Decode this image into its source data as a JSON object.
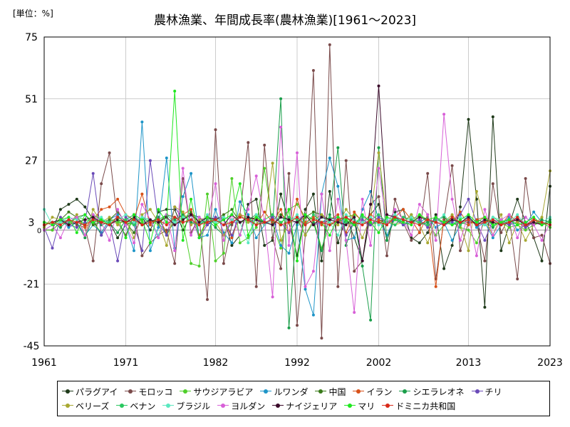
{
  "unit_label": "[単位：%]",
  "chart_data": {
    "type": "line",
    "title": "農林漁業、年間成長率(農林漁業)[1961～2023]",
    "xlabel": "",
    "ylabel": "",
    "xlim": [
      1961,
      2023
    ],
    "ylim": [
      -45,
      75
    ],
    "yticks": [
      75,
      51,
      27,
      3,
      -21,
      -45
    ],
    "xticks": [
      1961,
      1971,
      1982,
      1992,
      2002,
      2013,
      2023
    ],
    "zero_label": "0",
    "grid": true,
    "legend_position": "bottom",
    "series": [
      {
        "name": "パラグアイ",
        "color": "#1f3a1a",
        "values": [
          0,
          0,
          8,
          10,
          12,
          9,
          4,
          -2,
          3,
          -3,
          2,
          3,
          5,
          0,
          7,
          8,
          8,
          0,
          6,
          5,
          2,
          4,
          5,
          -6,
          -2,
          10,
          12,
          -6,
          -4,
          14,
          3,
          -10,
          8,
          14,
          -12,
          15,
          -5,
          5,
          -3,
          -12,
          6,
          10,
          -4,
          7,
          8,
          -3,
          -5,
          -1,
          6,
          -15,
          -6,
          9,
          43,
          12,
          -30,
          44,
          -8,
          2,
          12,
          3,
          -3,
          -12,
          17
        ]
      },
      {
        "name": "モロッコ",
        "color": "#7a4a4a",
        "values": [
          0,
          0,
          3,
          4,
          2,
          1,
          -12,
          18,
          30,
          3,
          -2,
          6,
          -10,
          -5,
          -2,
          0,
          -13,
          20,
          -1,
          5,
          -27,
          39,
          -13,
          2,
          6,
          34,
          -22,
          33,
          -3,
          -15,
          22,
          -37,
          -2,
          62,
          -42,
          72,
          -22,
          27,
          -16,
          -12,
          10,
          13,
          -10,
          12,
          3,
          -4,
          -1,
          22,
          -19,
          4,
          25,
          -8,
          3,
          3,
          -12,
          18,
          -1,
          5,
          -19,
          20,
          -3,
          -2,
          -13
        ]
      },
      {
        "name": "サウジアラビア",
        "color": "#4fcf2a",
        "values": [
          0,
          0,
          3,
          2,
          5,
          4,
          3,
          -1,
          4,
          3,
          3,
          2,
          3,
          4,
          2,
          6,
          3,
          3,
          -13,
          -14,
          14,
          -12,
          -9,
          20,
          -5,
          -3,
          1,
          24,
          2,
          -7,
          8,
          10,
          5,
          4,
          -7,
          2,
          3,
          5,
          6,
          4,
          2,
          3,
          3,
          5,
          2,
          4,
          6,
          3,
          -2,
          2,
          3,
          1,
          0,
          -5,
          4,
          2,
          3,
          1,
          2,
          0,
          2,
          3,
          1
        ]
      },
      {
        "name": "ルワンダ",
        "color": "#1e95c8",
        "values": [
          0,
          2,
          4,
          1,
          3,
          -2,
          2,
          -1,
          4,
          6,
          2,
          -8,
          42,
          -8,
          1,
          28,
          -7,
          13,
          22,
          -3,
          -2,
          8,
          -1,
          -5,
          11,
          6,
          -3,
          2,
          5,
          -6,
          -9,
          2,
          -23,
          -33,
          14,
          28,
          17,
          -4,
          -3,
          8,
          15,
          4,
          -2,
          5,
          2,
          4,
          3,
          5,
          1,
          3,
          -4,
          2,
          6,
          1,
          3,
          -3,
          2,
          5,
          0,
          2,
          7,
          3,
          2
        ]
      },
      {
        "name": "中国",
        "color": "#3a7a1a",
        "values": [
          3,
          2,
          4,
          7,
          5,
          6,
          2,
          3,
          4,
          7,
          3,
          -1,
          5,
          4,
          3,
          6,
          5,
          4,
          7,
          3,
          5,
          4,
          6,
          8,
          3,
          4,
          5,
          3,
          2,
          6,
          4,
          3,
          5,
          7,
          6,
          4,
          3,
          5,
          2,
          3,
          2,
          4,
          3,
          2,
          5,
          4,
          3,
          2,
          4,
          3,
          4,
          3,
          2,
          4,
          3,
          3,
          2,
          3,
          4,
          2,
          3,
          2,
          3
        ]
      },
      {
        "name": "イラン",
        "color": "#d8521a",
        "values": [
          3,
          2,
          4,
          3,
          5,
          1,
          4,
          8,
          9,
          12,
          6,
          4,
          14,
          2,
          5,
          -1,
          3,
          6,
          8,
          -2,
          3,
          5,
          4,
          -3,
          6,
          5,
          2,
          7,
          3,
          8,
          -1,
          12,
          3,
          5,
          2,
          4,
          6,
          -1,
          7,
          3,
          6,
          4,
          2,
          5,
          8,
          4,
          -1,
          6,
          -22,
          5,
          3,
          7,
          2,
          4,
          5,
          3,
          2,
          6,
          3,
          1,
          4,
          2,
          3
        ]
      },
      {
        "name": "シエラレオネ",
        "color": "#1a9e4a",
        "values": [
          2,
          3,
          1,
          4,
          3,
          -3,
          5,
          2,
          3,
          -1,
          4,
          6,
          2,
          3,
          5,
          -2,
          4,
          6,
          3,
          2,
          4,
          1,
          -2,
          3,
          5,
          4,
          6,
          3,
          2,
          51,
          -38,
          4,
          -2,
          3,
          -8,
          6,
          32,
          -6,
          4,
          -14,
          -35,
          32,
          -4,
          5,
          3,
          6,
          2,
          3,
          4,
          5,
          2,
          3,
          4,
          2,
          3,
          1,
          4,
          2,
          3,
          5,
          2,
          4,
          3
        ]
      },
      {
        "name": "チリ",
        "color": "#6a4ab8",
        "values": [
          1,
          -7,
          5,
          2,
          1,
          3,
          22,
          -2,
          3,
          -12,
          5,
          2,
          -8,
          27,
          3,
          -2,
          9,
          4,
          6,
          -3,
          2,
          5,
          4,
          -2,
          6,
          3,
          4,
          2,
          5,
          3,
          -1,
          4,
          6,
          2,
          3,
          4,
          5,
          -2,
          3,
          4,
          2,
          5,
          3,
          4,
          2,
          3,
          4,
          1,
          5,
          2,
          3,
          6,
          12,
          3,
          -4,
          4,
          3,
          2,
          5,
          1,
          3,
          2,
          4
        ]
      },
      {
        "name": "ベリーズ",
        "color": "#a8a832",
        "values": [
          1,
          5,
          4,
          2,
          6,
          -2,
          8,
          3,
          5,
          2,
          4,
          -3,
          6,
          8,
          3,
          -6,
          9,
          7,
          2,
          4,
          5,
          3,
          -2,
          4,
          6,
          3,
          5,
          2,
          26,
          -4,
          3,
          5,
          -2,
          4,
          6,
          3,
          2,
          8,
          4,
          -3,
          5,
          30,
          4,
          2,
          3,
          6,
          2,
          -5,
          4,
          3,
          6,
          2,
          -8,
          15,
          4,
          -2,
          6,
          -5,
          3,
          -4,
          2,
          5,
          23
        ]
      },
      {
        "name": "ベナン",
        "color": "#2ac860",
        "values": [
          2,
          3,
          4,
          3,
          5,
          2,
          6,
          4,
          3,
          5,
          4,
          2,
          5,
          3,
          4,
          6,
          3,
          5,
          4,
          2,
          5,
          3,
          4,
          6,
          3,
          5,
          2,
          4,
          6,
          3,
          5,
          4,
          2,
          6,
          3,
          5,
          4,
          3,
          2,
          5,
          4,
          6,
          3,
          2,
          5,
          4,
          3,
          2,
          4,
          3,
          5,
          2,
          4,
          3,
          2,
          5,
          3,
          4,
          2,
          3,
          5,
          2,
          4
        ]
      },
      {
        "name": "ブラジル",
        "color": "#5ae8c0",
        "values": [
          8,
          2,
          3,
          5,
          4,
          6,
          3,
          5,
          2,
          4,
          6,
          3,
          5,
          4,
          -2,
          6,
          3,
          5,
          4,
          2,
          6,
          3,
          5,
          4,
          3,
          -5,
          6,
          2,
          4,
          5,
          3,
          6,
          2,
          4,
          5,
          3,
          -2,
          6,
          4,
          3,
          5,
          2,
          4,
          6,
          3,
          5,
          2,
          4,
          3,
          6,
          2,
          5,
          4,
          3,
          2,
          5,
          4,
          3,
          6,
          2,
          4,
          3,
          5
        ]
      },
      {
        "name": "ヨルダン",
        "color": "#d860d8",
        "values": [
          0,
          2,
          -3,
          4,
          5,
          -2,
          6,
          3,
          -4,
          8,
          2,
          -5,
          10,
          4,
          -3,
          6,
          -8,
          24,
          -2,
          5,
          3,
          18,
          -4,
          6,
          -2,
          8,
          21,
          4,
          -26,
          40,
          -6,
          30,
          -22,
          -16,
          14,
          -8,
          12,
          -4,
          -32,
          12,
          -6,
          24,
          2,
          8,
          4,
          -2,
          10,
          6,
          -4,
          45,
          12,
          -4,
          6,
          -10,
          8,
          -2,
          4,
          6,
          -3,
          5,
          2,
          -4,
          3
        ]
      },
      {
        "name": "ナイジェリア",
        "color": "#3a0a2a",
        "values": [
          2,
          3,
          4,
          2,
          3,
          4,
          5,
          3,
          2,
          4,
          3,
          5,
          2,
          4,
          3,
          5,
          2,
          4,
          6,
          3,
          5,
          4,
          2,
          6,
          3,
          5,
          4,
          3,
          2,
          5,
          4,
          3,
          6,
          2,
          5,
          4,
          3,
          2,
          5,
          -12,
          10,
          56,
          6,
          5,
          4,
          3,
          5,
          4,
          3,
          2,
          4,
          3,
          5,
          2,
          4,
          3,
          2,
          3,
          4,
          2,
          3,
          2,
          3
        ]
      },
      {
        "name": "マリ",
        "color": "#1ee81e",
        "values": [
          3,
          2,
          4,
          5,
          -1,
          6,
          3,
          4,
          2,
          5,
          -3,
          6,
          4,
          -5,
          8,
          3,
          54,
          -4,
          12,
          -3,
          5,
          2,
          4,
          6,
          18,
          -2,
          5,
          3,
          4,
          2,
          8,
          -12,
          6,
          4,
          3,
          -2,
          5,
          4,
          2,
          6,
          3,
          -1,
          5,
          4,
          3,
          2,
          6,
          4,
          5,
          3,
          2,
          4,
          6,
          3,
          5,
          2,
          3,
          4,
          2,
          3,
          5,
          2,
          3
        ]
      },
      {
        "name": "ドミニカ共和国",
        "color": "#d82a1a",
        "values": [
          2,
          3,
          2,
          4,
          3,
          2,
          4,
          3,
          2,
          5,
          3,
          4,
          2,
          3,
          4,
          2,
          5,
          3,
          4,
          2,
          3,
          4,
          2,
          3,
          5,
          4,
          2,
          3,
          4,
          2,
          3,
          5,
          2,
          4,
          3,
          2,
          4,
          5,
          3,
          2,
          4,
          3,
          2,
          5,
          4,
          3,
          2,
          4,
          3,
          2,
          5,
          3,
          4,
          2,
          3,
          4,
          2,
          3,
          5,
          2,
          4,
          3,
          2
        ]
      }
    ]
  }
}
